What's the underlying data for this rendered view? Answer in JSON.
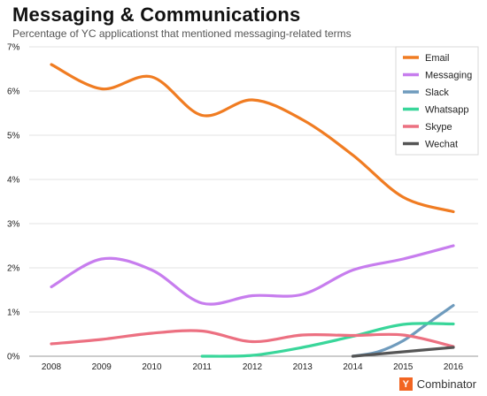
{
  "title": "Messaging & Communications",
  "subtitle": "Percentage of YC applicationst that mentioned messaging-related terms",
  "logo": {
    "mark": "Y",
    "text": "Combinator"
  },
  "chart_data": {
    "type": "line",
    "x": [
      2008,
      2009,
      2010,
      2011,
      2012,
      2013,
      2014,
      2015,
      2016
    ],
    "x_tick_labels": [
      "2008",
      "2009",
      "2010",
      "2011",
      "2012",
      "2013",
      "2014",
      "2015",
      "2016"
    ],
    "y_ticks": [
      0,
      1,
      2,
      3,
      4,
      5,
      6,
      7
    ],
    "y_tick_labels": [
      "0%",
      "1%",
      "2%",
      "3%",
      "4%",
      "5%",
      "6%",
      "7%"
    ],
    "ylim": [
      0,
      7
    ],
    "grid": "horizontal",
    "legend_position": "top-right",
    "series": [
      {
        "name": "Email",
        "color": "#f07c22",
        "points": [
          [
            2008,
            6.6
          ],
          [
            2009,
            6.05
          ],
          [
            2010,
            6.32
          ],
          [
            2011,
            5.45
          ],
          [
            2012,
            5.8
          ],
          [
            2013,
            5.35
          ],
          [
            2014,
            4.55
          ],
          [
            2015,
            3.6
          ],
          [
            2016,
            3.27
          ]
        ]
      },
      {
        "name": "Messaging",
        "color": "#c77dee",
        "points": [
          [
            2008,
            1.57
          ],
          [
            2009,
            2.2
          ],
          [
            2010,
            1.95
          ],
          [
            2011,
            1.2
          ],
          [
            2012,
            1.37
          ],
          [
            2013,
            1.4
          ],
          [
            2014,
            1.95
          ],
          [
            2015,
            2.2
          ],
          [
            2016,
            2.5
          ]
        ]
      },
      {
        "name": "Slack",
        "color": "#6f9bbd",
        "points": [
          [
            2014,
            0.0
          ],
          [
            2014.5,
            0.1
          ],
          [
            2015,
            0.35
          ],
          [
            2015.5,
            0.75
          ],
          [
            2016,
            1.15
          ]
        ]
      },
      {
        "name": "Whatsapp",
        "color": "#39d69a",
        "points": [
          [
            2011,
            0.0
          ],
          [
            2012,
            0.02
          ],
          [
            2013,
            0.2
          ],
          [
            2014,
            0.45
          ],
          [
            2015,
            0.72
          ],
          [
            2016,
            0.73
          ]
        ]
      },
      {
        "name": "Skype",
        "color": "#ec7081",
        "points": [
          [
            2008,
            0.28
          ],
          [
            2009,
            0.38
          ],
          [
            2010,
            0.52
          ],
          [
            2011,
            0.57
          ],
          [
            2012,
            0.33
          ],
          [
            2013,
            0.48
          ],
          [
            2014,
            0.47
          ],
          [
            2015,
            0.48
          ],
          [
            2016,
            0.22
          ]
        ]
      },
      {
        "name": "Wechat",
        "color": "#555555",
        "points": [
          [
            2014,
            0.0
          ],
          [
            2015,
            0.1
          ],
          [
            2016,
            0.2
          ]
        ]
      }
    ]
  }
}
